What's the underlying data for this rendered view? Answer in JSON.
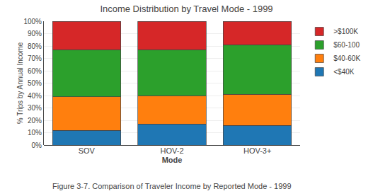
{
  "chart_data": {
    "type": "bar",
    "stacked": true,
    "title": "Income Distribution by Travel Mode - 1999",
    "xlabel": "Mode",
    "ylabel": "% Trips by Annual Income",
    "caption": "Figure 3-7. Comparison of Traveler Income by Reported Mode - 1999",
    "categories": [
      "SOV",
      "HOV-2",
      "HOV-3+"
    ],
    "series": [
      {
        "name": "<$40K",
        "values": [
          12,
          17,
          16
        ]
      },
      {
        "name": "$40-60K",
        "values": [
          27,
          23,
          25
        ]
      },
      {
        "name": "$60-100",
        "values": [
          38,
          37,
          40
        ]
      },
      {
        "name": ">$100K",
        "values": [
          23,
          23,
          19
        ]
      }
    ],
    "ylim": [
      0,
      100
    ],
    "yticks": [
      {
        "value": 0,
        "label": "0%"
      },
      {
        "value": 10,
        "label": "10%"
      },
      {
        "value": 20,
        "label": "20%"
      },
      {
        "value": 30,
        "label": "30%"
      },
      {
        "value": 40,
        "label": "40%"
      },
      {
        "value": 50,
        "label": "50%"
      },
      {
        "value": 60,
        "label": "60%"
      },
      {
        "value": 70,
        "label": "70%"
      },
      {
        "value": 80,
        "label": "80%"
      },
      {
        "value": 90,
        "label": "90%"
      },
      {
        "value": 100,
        "label": "100%"
      }
    ],
    "grid": true,
    "legend": "right"
  }
}
